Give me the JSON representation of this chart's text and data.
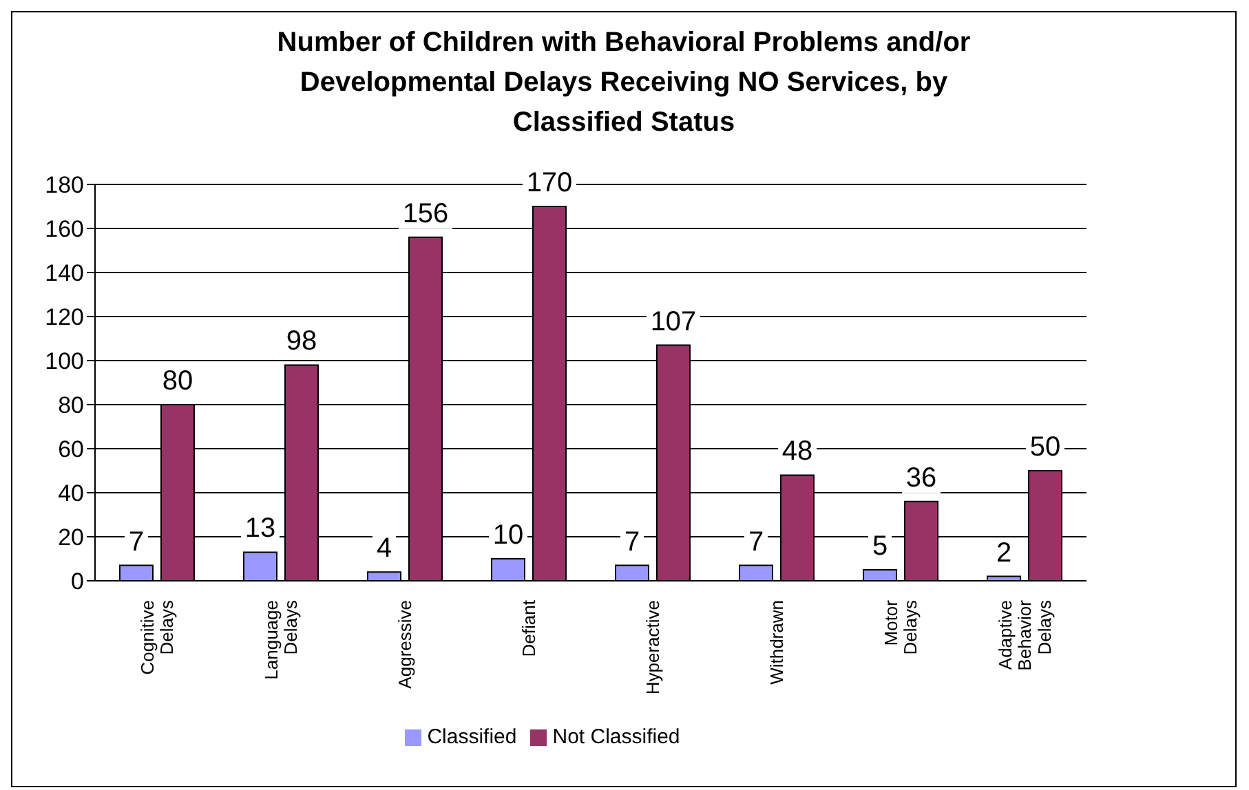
{
  "chart_data": {
    "type": "bar",
    "title": "Number of Children with Behavioral Problems and/or Developmental Delays Receiving NO Services, by Classified Status",
    "categories": [
      "Cognitive Delays",
      "Language Delays",
      "Aggressive",
      "Defiant",
      "Hyperactive",
      "Withdrawn",
      "Motor Delays",
      "Adaptive Behavior Delays"
    ],
    "series": [
      {
        "name": "Classified",
        "color": "#9999ff",
        "values": [
          7,
          13,
          4,
          10,
          7,
          7,
          5,
          2
        ]
      },
      {
        "name": "Not Classified",
        "color": "#993366",
        "values": [
          80,
          98,
          156,
          170,
          107,
          48,
          36,
          50
        ]
      }
    ],
    "ylim": [
      0,
      180
    ],
    "yticks": [
      0,
      20,
      40,
      60,
      80,
      100,
      120,
      140,
      160,
      180
    ],
    "grid": "y",
    "legend": "bottom",
    "data_labels": true
  }
}
